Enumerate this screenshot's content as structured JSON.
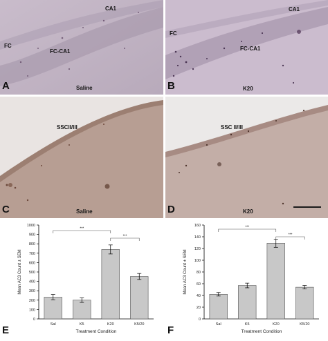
{
  "panels": [
    {
      "letter": "A",
      "treatment": "Saline",
      "regions": [
        "CA1",
        "FC",
        "FC-CA1"
      ]
    },
    {
      "letter": "B",
      "treatment": "K20",
      "regions": [
        "CA1",
        "FC",
        "FC-CA1"
      ]
    },
    {
      "letter": "C",
      "treatment": "Saline",
      "regions": [
        "SSCII/III"
      ]
    },
    {
      "letter": "D",
      "treatment": "K20",
      "regions": [
        "SSC II/III"
      ]
    }
  ],
  "charts": [
    {
      "letter": "E"
    },
    {
      "letter": "F"
    }
  ],
  "chart_data": [
    {
      "type": "bar",
      "categories": [
        "Sal",
        "K5",
        "K20",
        "K5/20"
      ],
      "values": [
        232,
        200,
        740,
        452
      ],
      "errors": [
        28,
        24,
        48,
        32
      ],
      "ylim": [
        0,
        1000
      ],
      "yticks": [
        "0",
        "100",
        "200",
        "300",
        "400",
        "500",
        "600",
        "700",
        "800",
        "900",
        "1000"
      ],
      "ylabel": "Mean AC3 Count ± SEM",
      "xlabel": "Treatment Condition",
      "significance": [
        {
          "from": "Sal",
          "to": "K20",
          "label": "***"
        },
        {
          "from": "K20",
          "to": "K5/20",
          "label": "***"
        }
      ],
      "bar_color": "#c8c8c8"
    },
    {
      "type": "bar",
      "categories": [
        "Sal",
        "K5",
        "K20",
        "K5/20"
      ],
      "values": [
        42,
        57,
        129,
        54
      ],
      "errors": [
        3,
        4,
        7,
        3
      ],
      "ylim": [
        0,
        160
      ],
      "yticks": [
        "0",
        "20",
        "40",
        "60",
        "80",
        "100",
        "120",
        "140",
        "160"
      ],
      "ylabel": "Mean AC3 Count ± SEM",
      "xlabel": "Treatment Condition",
      "significance": [
        {
          "from": "Sal",
          "to": "K20",
          "label": "***"
        },
        {
          "from": "K20",
          "to": "K5/20",
          "label": "***"
        }
      ],
      "bar_color": "#c8c8c8"
    }
  ]
}
